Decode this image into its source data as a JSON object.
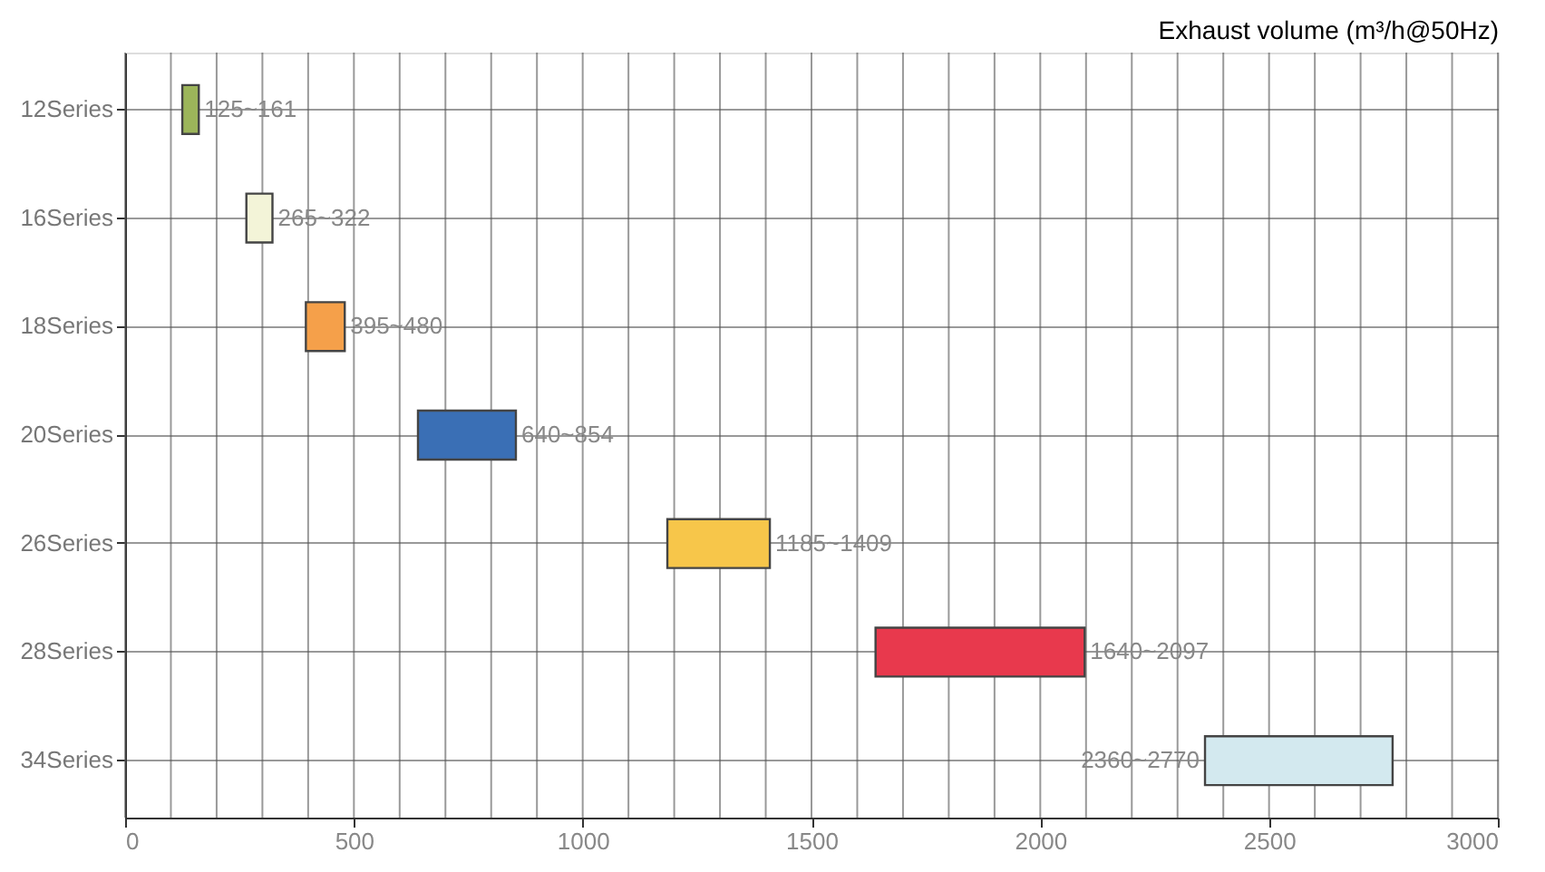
{
  "chart_data": {
    "type": "bar",
    "orientation": "horizontal",
    "title": "Exhaust volume (m³/h@50Hz)",
    "categories": [
      "12Series",
      "16Series",
      "18Series",
      "20Series",
      "26Series",
      "28Series",
      "34Series"
    ],
    "base": [
      125,
      265,
      395,
      640,
      1185,
      1640,
      2360
    ],
    "values": [
      36,
      57,
      85,
      214,
      224,
      457,
      410
    ],
    "annotations": [
      {
        "text": "125~161",
        "x": 161,
        "y": "12Series"
      },
      {
        "text": "265~322",
        "x": 322,
        "y": "16Series"
      },
      {
        "text": "395~480",
        "x": 480,
        "y": "18Series"
      },
      {
        "text": "640~854",
        "x": 854,
        "y": "20Series"
      },
      {
        "text": "1185~1409",
        "x": 1409,
        "y": "26Series"
      },
      {
        "text": "1640~2097",
        "x": 2097,
        "y": "28Series"
      },
      {
        "text": "2360~2770",
        "x": 2360,
        "y": "34Series"
      }
    ],
    "colors": [
      "#9cb55a",
      "#f3f4d8",
      "#f5a04a",
      "#3a6fb5",
      "#f7c64a",
      "#e8394d",
      "#d3e9ef"
    ],
    "xlim": [
      0,
      3000
    ],
    "xticks": [
      0,
      {
        "value": 100,
        "label": null
      },
      {
        "value": 200,
        "label": null
      },
      {
        "value": 300,
        "label": null
      },
      {
        "value": 400,
        "label": null
      },
      500,
      {
        "value": 600,
        "label": null
      },
      {
        "value": 700,
        "label": null
      },
      {
        "value": 800,
        "label": null
      },
      {
        "value": 900,
        "label": null
      },
      1000,
      {
        "value": 1100,
        "label": null
      },
      {
        "value": 1200,
        "label": null
      },
      {
        "value": 1300,
        "label": null
      },
      {
        "value": 1400,
        "label": null
      },
      1500,
      {
        "value": 1600,
        "label": null
      },
      {
        "value": 1700,
        "label": null
      },
      {
        "value": 1800,
        "label": null
      },
      {
        "value": 1900,
        "label": null
      },
      2000,
      {
        "value": 2100,
        "label": null
      },
      {
        "value": 2200,
        "label": null
      },
      {
        "value": 2300,
        "label": null
      },
      {
        "value": 2400,
        "label": null
      },
      2500,
      {
        "value": 2600,
        "label": null
      },
      {
        "value": 2700,
        "label": null
      },
      {
        "value": 2800,
        "label": null
      },
      {
        "value": 2900,
        "label": null
      },
      3000
    ],
    "grid": true
  }
}
